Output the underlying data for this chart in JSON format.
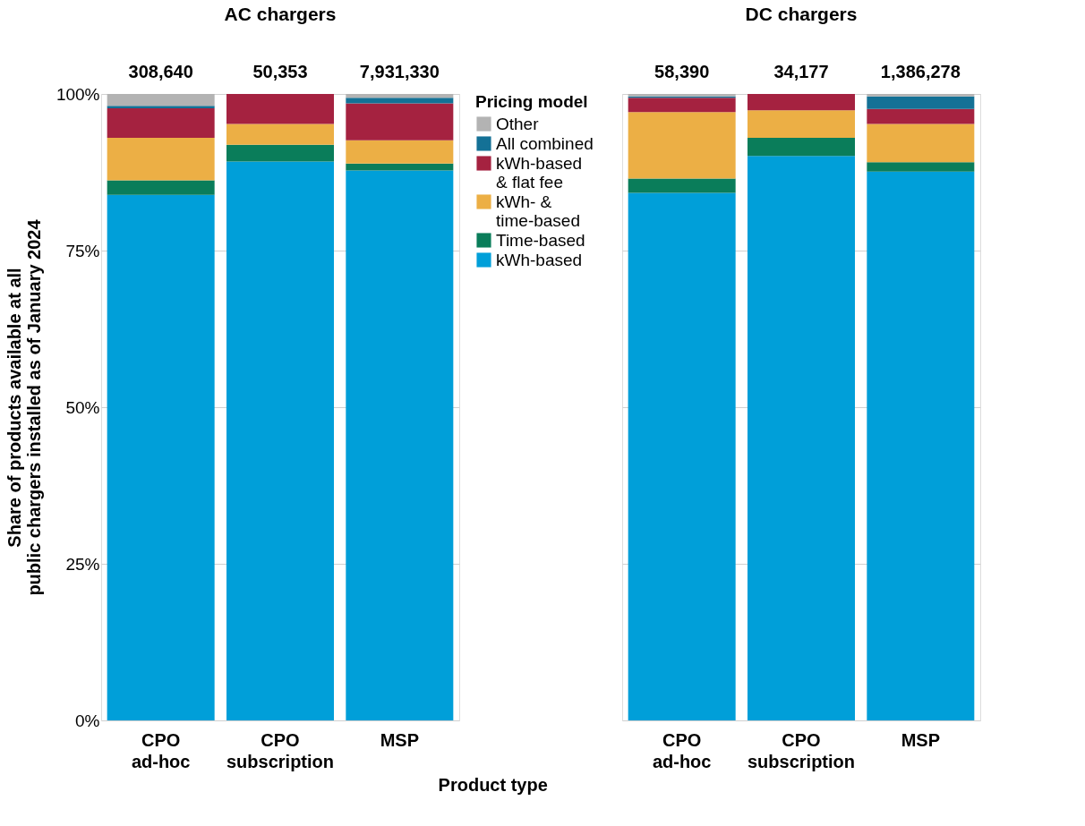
{
  "chart_data": [
    {
      "type": "bar",
      "stacked": true,
      "title": "AC chargers",
      "xlabel": "Product type",
      "ylabel": "Share of products available at all\npublic chargers installed as of January 2024",
      "legend_title": "Pricing model",
      "legend": "right",
      "grid": "y",
      "categories": [
        "CPO\nad-hoc",
        "CPO\nsubscription",
        "MSP"
      ],
      "annotations": [
        {
          "text": "308,640",
          "x": "CPO\nad-hoc",
          "y": 100
        },
        {
          "text": "50,353",
          "x": "CPO\nsubscription",
          "y": 100
        },
        {
          "text": "7,931,330",
          "x": "MSP",
          "y": 100
        }
      ],
      "ylim": [
        0,
        100
      ],
      "yticks": [
        {
          "value": 0,
          "label": "0%"
        },
        {
          "value": 25,
          "label": "25%"
        },
        {
          "value": 50,
          "label": "50%"
        },
        {
          "value": 75,
          "label": "75%"
        },
        {
          "value": 100,
          "label": "100%"
        }
      ],
      "series": [
        {
          "name": "kWh-based",
          "color": "#009fd9",
          "values": [
            83.9,
            89.2,
            87.8
          ]
        },
        {
          "name": "Time-based",
          "color": "#0a7d5a",
          "values": [
            2.3,
            2.7,
            1.1
          ]
        },
        {
          "name": "kWh- &\ntime-based",
          "color": "#ecaf45",
          "values": [
            6.8,
            3.3,
            3.7
          ]
        },
        {
          "name": "kWh-based\n& flat fee",
          "color": "#a52240",
          "values": [
            4.7,
            4.8,
            5.9
          ]
        },
        {
          "name": "All combined",
          "color": "#147196",
          "values": [
            0.4,
            0,
            0.9
          ]
        },
        {
          "name": "Other",
          "color": "#b3b3b3",
          "values": [
            1.9,
            0,
            0.6
          ]
        }
      ]
    },
    {
      "type": "bar",
      "stacked": true,
      "title": "DC chargers",
      "legend": "right",
      "grid": "y",
      "tick_labels": "x",
      "categories": [
        "CPO\nad-hoc",
        "CPO\nsubscription",
        "MSP"
      ],
      "annotations": [
        {
          "text": "58,390",
          "x": "CPO\nad-hoc",
          "y": 100
        },
        {
          "text": "34,177",
          "x": "CPO\nsubscription",
          "y": 100
        },
        {
          "text": "1,386,278",
          "x": "MSP",
          "y": 100
        }
      ],
      "ylim": [
        0,
        100
      ],
      "yticks": [
        0,
        25,
        50,
        75,
        100
      ],
      "series": [
        {
          "color": "#009fd9",
          "values": [
            84.2,
            90.1,
            87.6
          ]
        },
        {
          "color": "#0a7d5a",
          "values": [
            2.3,
            2.9,
            1.5
          ]
        },
        {
          "color": "#ecaf45",
          "values": [
            10.6,
            4.4,
            6.1
          ]
        },
        {
          "color": "#a52240",
          "values": [
            2.3,
            2.6,
            2.4
          ]
        },
        {
          "color": "#147196",
          "values": [
            0.2,
            0,
            2.0
          ]
        },
        {
          "color": "#b3b3b3",
          "values": [
            0.4,
            0,
            0.4
          ]
        }
      ]
    }
  ]
}
